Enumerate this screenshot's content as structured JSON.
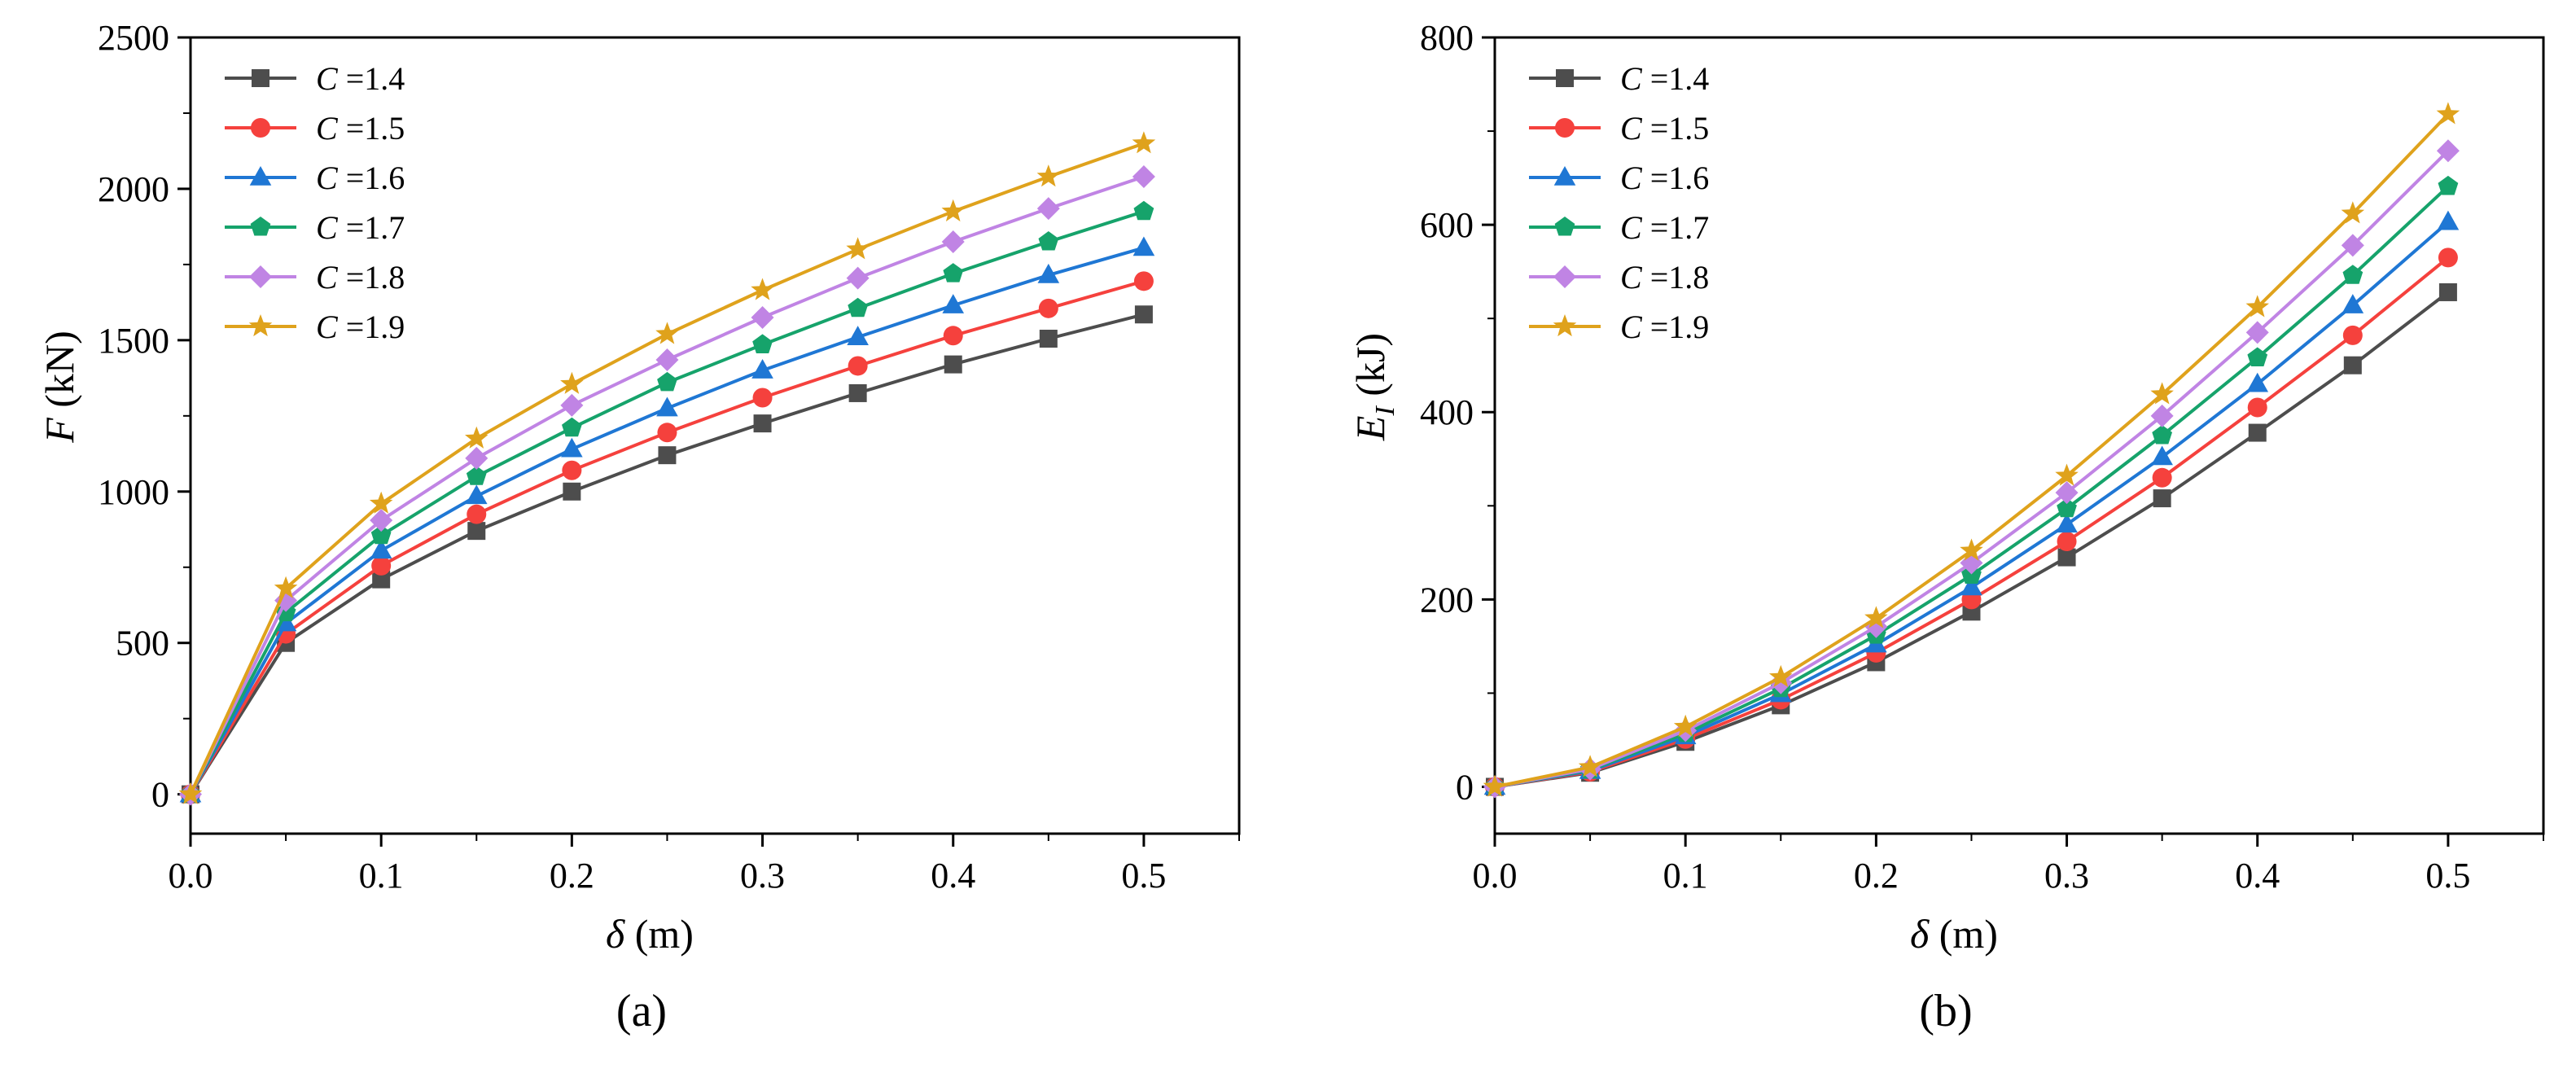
{
  "chart_data": [
    {
      "type": "line",
      "panel_label": "(a)",
      "xlabel_symbol": "δ",
      "xlabel_unit": " (m)",
      "ylabel_symbol": "F",
      "ylabel_unit": " (kN)",
      "xlim": [
        0,
        0.55
      ],
      "ylim": [
        -130,
        2500
      ],
      "xticks": [
        0.0,
        0.1,
        0.2,
        0.3,
        0.4,
        0.5
      ],
      "xtick_labels": [
        "0.0",
        "0.1",
        "0.2",
        "0.3",
        "0.4",
        "0.5"
      ],
      "yticks": [
        0,
        500,
        1000,
        1500,
        2000,
        2500
      ],
      "ytick_labels": [
        "0",
        "500",
        "1000",
        "1500",
        "2000",
        "2500"
      ],
      "legend_position": "top-left",
      "grid": false,
      "x": [
        0,
        0.05,
        0.1,
        0.15,
        0.2,
        0.25,
        0.3,
        0.35,
        0.4,
        0.45,
        0.5
      ],
      "series": [
        {
          "name_symbol": "C",
          "name_value": " =1.4",
          "color": "#4d4d4d",
          "marker": "square",
          "values": [
            0,
            500,
            710,
            870,
            1000,
            1120,
            1225,
            1325,
            1420,
            1505,
            1585
          ]
        },
        {
          "name_symbol": "C",
          "name_value": " =1.5",
          "color": "#f5413d",
          "marker": "circle",
          "values": [
            0,
            530,
            755,
            925,
            1070,
            1195,
            1310,
            1415,
            1515,
            1605,
            1695
          ]
        },
        {
          "name_symbol": "C",
          "name_value": " =1.6",
          "color": "#1f77d4",
          "marker": "triangle",
          "values": [
            0,
            565,
            805,
            985,
            1140,
            1275,
            1400,
            1510,
            1615,
            1715,
            1805
          ]
        },
        {
          "name_symbol": "C",
          "name_value": " =1.7",
          "color": "#16a36b",
          "marker": "pentagon",
          "values": [
            0,
            600,
            855,
            1050,
            1210,
            1360,
            1485,
            1605,
            1720,
            1825,
            1925
          ]
        },
        {
          "name_symbol": "C",
          "name_value": " =1.8",
          "color": "#c084e4",
          "marker": "diamond",
          "values": [
            0,
            640,
            905,
            1110,
            1285,
            1435,
            1575,
            1705,
            1825,
            1935,
            2040
          ]
        },
        {
          "name_symbol": "C",
          "name_value": " =1.9",
          "color": "#dfa21c",
          "marker": "star",
          "values": [
            0,
            680,
            960,
            1175,
            1355,
            1520,
            1665,
            1800,
            1925,
            2040,
            2150
          ]
        }
      ]
    },
    {
      "type": "line",
      "panel_label": "(b)",
      "xlabel_symbol": "δ",
      "xlabel_unit": " (m)",
      "ylabel_symbol": "E",
      "ylabel_subscript": "I",
      "ylabel_unit": " (kJ)",
      "xlim": [
        0,
        0.55
      ],
      "ylim": [
        -50,
        800
      ],
      "xticks": [
        0.0,
        0.1,
        0.2,
        0.3,
        0.4,
        0.5
      ],
      "xtick_labels": [
        "0.0",
        "0.1",
        "0.2",
        "0.3",
        "0.4",
        "0.5"
      ],
      "yticks": [
        0,
        200,
        400,
        600,
        800
      ],
      "ytick_labels": [
        "0",
        "200",
        "400",
        "600",
        "800"
      ],
      "legend_position": "top-left",
      "grid": false,
      "x": [
        0,
        0.05,
        0.1,
        0.15,
        0.2,
        0.25,
        0.3,
        0.35,
        0.4,
        0.45,
        0.5
      ],
      "series": [
        {
          "name_symbol": "C",
          "name_value": " =1.4",
          "color": "#4d4d4d",
          "marker": "square",
          "values": [
            0,
            15,
            48,
            87,
            133,
            187,
            245,
            308,
            378,
            450,
            528
          ]
        },
        {
          "name_symbol": "C",
          "name_value": " =1.5",
          "color": "#f5413d",
          "marker": "circle",
          "values": [
            0,
            16,
            51,
            93,
            143,
            200,
            262,
            330,
            405,
            482,
            565
          ]
        },
        {
          "name_symbol": "C",
          "name_value": " =1.6",
          "color": "#1f77d4",
          "marker": "triangle",
          "values": [
            0,
            17,
            54,
            99,
            152,
            213,
            280,
            352,
            430,
            514,
            603
          ]
        },
        {
          "name_symbol": "C",
          "name_value": " =1.7",
          "color": "#16a36b",
          "marker": "pentagon",
          "values": [
            0,
            18,
            57,
            105,
            162,
            226,
            297,
            375,
            458,
            546,
            641
          ]
        },
        {
          "name_symbol": "C",
          "name_value": " =1.8",
          "color": "#c084e4",
          "marker": "diamond",
          "values": [
            0,
            19,
            60,
            111,
            171,
            239,
            314,
            396,
            485,
            578,
            679
          ]
        },
        {
          "name_symbol": "C",
          "name_value": " =1.9",
          "color": "#dfa21c",
          "marker": "star",
          "values": [
            0,
            21,
            64,
            117,
            180,
            252,
            332,
            419,
            512,
            612,
            718
          ]
        }
      ]
    }
  ]
}
